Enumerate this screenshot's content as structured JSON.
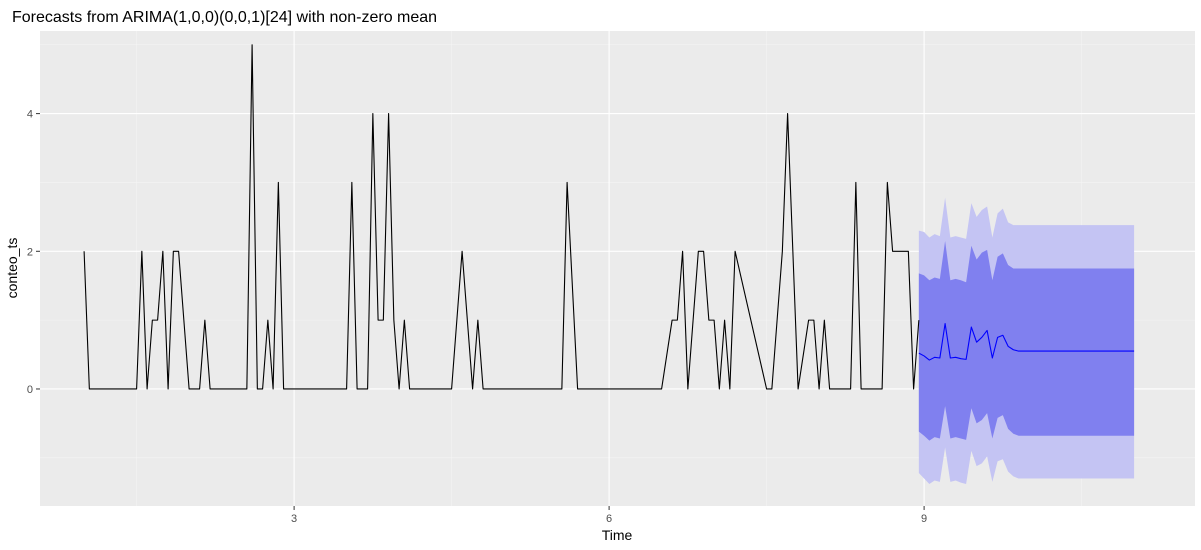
{
  "chart_data": {
    "type": "line",
    "title": "Forecasts from ARIMA(1,0,0)(0,0,1)[24] with non-zero mean",
    "xlabel": "Time",
    "ylabel": "conteo_ts",
    "xlim": [
      0.58,
      11.58
    ],
    "ylim": [
      -1.7,
      5.2
    ],
    "x_ticks": [
      3,
      6,
      9
    ],
    "x_tick_labels": [
      "3",
      "6",
      "9"
    ],
    "y_ticks": [
      0,
      2,
      4
    ],
    "y_tick_labels": [
      "0",
      "2",
      "4"
    ],
    "grid": true,
    "legend": "none",
    "colors": {
      "panel": "#ebebeb",
      "grid_major": "#ffffff",
      "grid_minor": "#f5f5f5",
      "series": "#000000",
      "forecast": "#0000ff",
      "band95": "#c4c4f3",
      "band80": "#8080ef"
    },
    "series": [
      {
        "x": [
          1.0,
          1.05,
          1.5,
          1.55,
          1.6,
          1.65,
          1.7,
          1.75,
          1.8,
          1.85,
          1.9,
          1.95,
          2.0,
          2.1,
          2.15,
          2.2,
          2.3,
          2.55,
          2.6,
          2.65,
          2.7,
          2.75,
          2.8,
          2.85,
          2.9,
          2.95,
          3.0,
          3.5,
          3.55,
          3.6,
          3.7,
          3.75,
          3.8,
          3.85,
          3.9,
          3.95,
          4.0,
          4.05,
          4.1,
          4.15,
          4.5,
          4.6,
          4.7,
          4.75,
          4.8,
          5.55,
          5.6,
          5.7,
          6.45,
          6.5,
          6.6,
          6.65,
          6.7,
          6.75,
          6.8,
          6.85,
          6.9,
          6.95,
          7.0,
          7.05,
          7.1,
          7.15,
          7.2,
          7.5,
          7.55,
          7.6,
          7.65,
          7.7,
          7.75,
          7.8,
          7.9,
          7.95,
          8.0,
          8.05,
          8.1,
          8.15,
          8.3,
          8.35,
          8.4,
          8.45,
          8.6,
          8.65,
          8.7,
          8.8,
          8.85,
          8.9,
          8.95
        ],
        "values": [
          2,
          0,
          0,
          2,
          0,
          1,
          1,
          2,
          0,
          2,
          2,
          1,
          0,
          0,
          1,
          0,
          0,
          0,
          5,
          0,
          0,
          1,
          0,
          3,
          0,
          0,
          0,
          0,
          3,
          0,
          0,
          4,
          1,
          1,
          4,
          1,
          0,
          1,
          0,
          0,
          0,
          2,
          0,
          1,
          0,
          0,
          3,
          0,
          0,
          0,
          1,
          1,
          2,
          0,
          1,
          2,
          2,
          1,
          1,
          0,
          1,
          0,
          2,
          0,
          0,
          1,
          2,
          4,
          2,
          0,
          1,
          1,
          0,
          1,
          0,
          0,
          0,
          3,
          0,
          0,
          0,
          3,
          2,
          2,
          2,
          0,
          1
        ]
      },
      {
        "x": [
          8.95,
          9.0,
          9.05,
          9.1,
          9.15,
          9.2,
          9.25,
          9.3,
          9.35,
          9.4,
          9.45,
          9.5,
          9.55,
          9.6,
          9.65,
          9.7,
          9.75,
          9.8,
          9.85,
          9.9,
          9.95,
          10.0,
          10.2,
          10.5,
          10.8,
          11.0
        ],
        "values": [
          0.52,
          0.48,
          0.42,
          0.46,
          0.45,
          0.95,
          0.45,
          0.46,
          0.44,
          0.43,
          0.9,
          0.68,
          0.75,
          0.85,
          0.45,
          0.75,
          0.78,
          0.62,
          0.57,
          0.55,
          0.55,
          0.55,
          0.55,
          0.55,
          0.55,
          0.55
        ],
        "band95_upper": [
          2.3,
          2.28,
          2.2,
          2.25,
          2.22,
          2.78,
          2.2,
          2.22,
          2.2,
          2.18,
          2.7,
          2.5,
          2.6,
          2.65,
          2.2,
          2.55,
          2.62,
          2.42,
          2.38,
          2.38,
          2.38,
          2.38,
          2.38,
          2.38,
          2.38,
          2.38
        ],
        "band95_lower": [
          -1.22,
          -1.3,
          -1.38,
          -1.33,
          -1.35,
          -0.85,
          -1.35,
          -1.33,
          -1.36,
          -1.38,
          -0.9,
          -1.12,
          -1.08,
          -0.98,
          -1.35,
          -1.05,
          -1.02,
          -1.2,
          -1.27,
          -1.3,
          -1.3,
          -1.3,
          -1.3,
          -1.3,
          -1.3,
          -1.3
        ],
        "band80_upper": [
          1.68,
          1.65,
          1.58,
          1.62,
          1.6,
          2.15,
          1.58,
          1.6,
          1.58,
          1.55,
          2.08,
          1.88,
          1.98,
          2.02,
          1.58,
          1.92,
          1.97,
          1.8,
          1.75,
          1.75,
          1.75,
          1.75,
          1.75,
          1.75,
          1.75,
          1.75
        ],
        "band80_lower": [
          -0.62,
          -0.68,
          -0.75,
          -0.7,
          -0.72,
          -0.25,
          -0.72,
          -0.7,
          -0.72,
          -0.74,
          -0.28,
          -0.5,
          -0.45,
          -0.35,
          -0.72,
          -0.42,
          -0.38,
          -0.58,
          -0.65,
          -0.68,
          -0.68,
          -0.68,
          -0.68,
          -0.68,
          -0.68,
          -0.68
        ]
      }
    ]
  }
}
